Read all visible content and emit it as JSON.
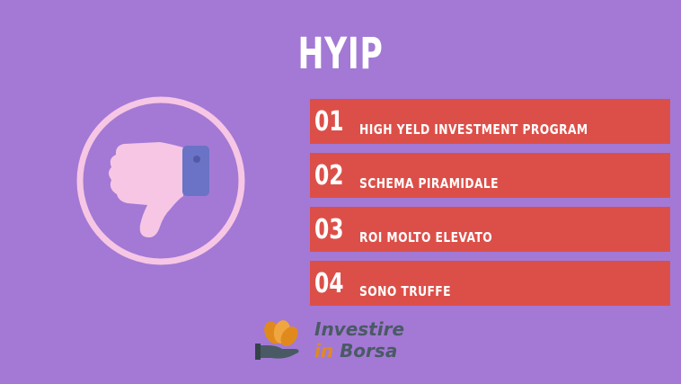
{
  "title": "HYIP",
  "colors": {
    "background": "#a379d5",
    "row_background": "#dc4f48",
    "icon_pink": "#f6c6e4",
    "icon_cuff": "#6a73c5",
    "logo_orange": "#e08a1e",
    "logo_gray": "#4a5a64"
  },
  "icon": {
    "name": "thumbs-down-icon"
  },
  "items": [
    {
      "number": "01",
      "label": "HIGH YELD INVESTMENT PROGRAM"
    },
    {
      "number": "02",
      "label": "SCHEMA PIRAMIDALE"
    },
    {
      "number": "03",
      "label": "ROI MOLTO ELEVATO"
    },
    {
      "number": "04",
      "label": "SONO TRUFFE"
    }
  ],
  "logo": {
    "line1": "Investire",
    "line2_a": "in",
    "line2_b": "Borsa",
    "icon_name": "hand-coins-icon"
  }
}
